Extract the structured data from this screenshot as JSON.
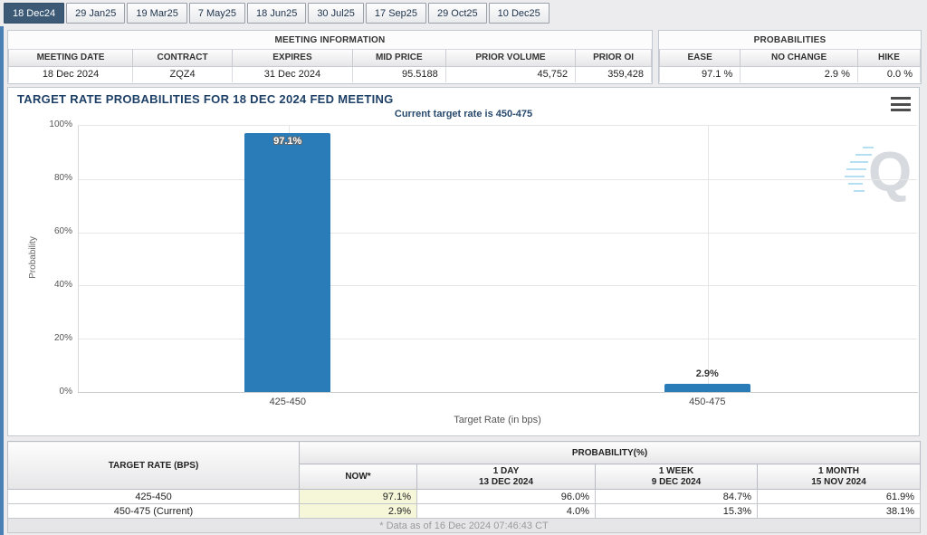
{
  "tabs": [
    {
      "label": "18 Dec24",
      "active": true
    },
    {
      "label": "29 Jan25",
      "active": false
    },
    {
      "label": "19 Mar25",
      "active": false
    },
    {
      "label": "7 May25",
      "active": false
    },
    {
      "label": "18 Jun25",
      "active": false
    },
    {
      "label": "30 Jul25",
      "active": false
    },
    {
      "label": "17 Sep25",
      "active": false
    },
    {
      "label": "29 Oct25",
      "active": false
    },
    {
      "label": "10 Dec25",
      "active": false
    }
  ],
  "meeting_info": {
    "title": "MEETING INFORMATION",
    "headers": [
      "MEETING DATE",
      "CONTRACT",
      "EXPIRES",
      "MID PRICE",
      "PRIOR VOLUME",
      "PRIOR OI"
    ],
    "values": [
      "18 Dec 2024",
      "ZQZ4",
      "31 Dec 2024",
      "95.5188",
      "45,752",
      "359,428"
    ]
  },
  "probabilities_panel": {
    "title": "PROBABILITIES",
    "headers": [
      "EASE",
      "NO CHANGE",
      "HIKE"
    ],
    "values": [
      "97.1 %",
      "2.9 %",
      "0.0 %"
    ]
  },
  "chart_data": {
    "type": "bar",
    "title": "TARGET RATE PROBABILITIES FOR 18 DEC 2024 FED MEETING",
    "subtitle": "Current target rate is 450-475",
    "categories": [
      "425-450",
      "450-475"
    ],
    "values": [
      97.1,
      2.9
    ],
    "value_labels": [
      "97.1%",
      "2.9%"
    ],
    "xlabel": "Target Rate (in bps)",
    "ylabel": "Probability",
    "ylim": [
      0,
      100
    ],
    "yticks": [
      "0%",
      "20%",
      "40%",
      "60%",
      "80%",
      "100%"
    ],
    "bar_color": "#2a7cb8",
    "grid": true,
    "legend": false,
    "watermark_letter": "Q"
  },
  "probability_table": {
    "rate_header": "TARGET RATE (BPS)",
    "group_header": "PROBABILITY(%)",
    "sub_headers": [
      {
        "line1": "NOW*",
        "line2": ""
      },
      {
        "line1": "1 DAY",
        "line2": "13 DEC 2024"
      },
      {
        "line1": "1 WEEK",
        "line2": "9 DEC 2024"
      },
      {
        "line1": "1 MONTH",
        "line2": "15 NOV 2024"
      }
    ],
    "rows": [
      {
        "rate": "425-450",
        "now": "97.1%",
        "day": "96.0%",
        "week": "84.7%",
        "month": "61.9%"
      },
      {
        "rate": "450-475 (Current)",
        "now": "2.9%",
        "day": "4.0%",
        "week": "15.3%",
        "month": "38.1%"
      }
    ],
    "footnote": "* Data as of 16 Dec 2024 07:46:43 CT"
  }
}
